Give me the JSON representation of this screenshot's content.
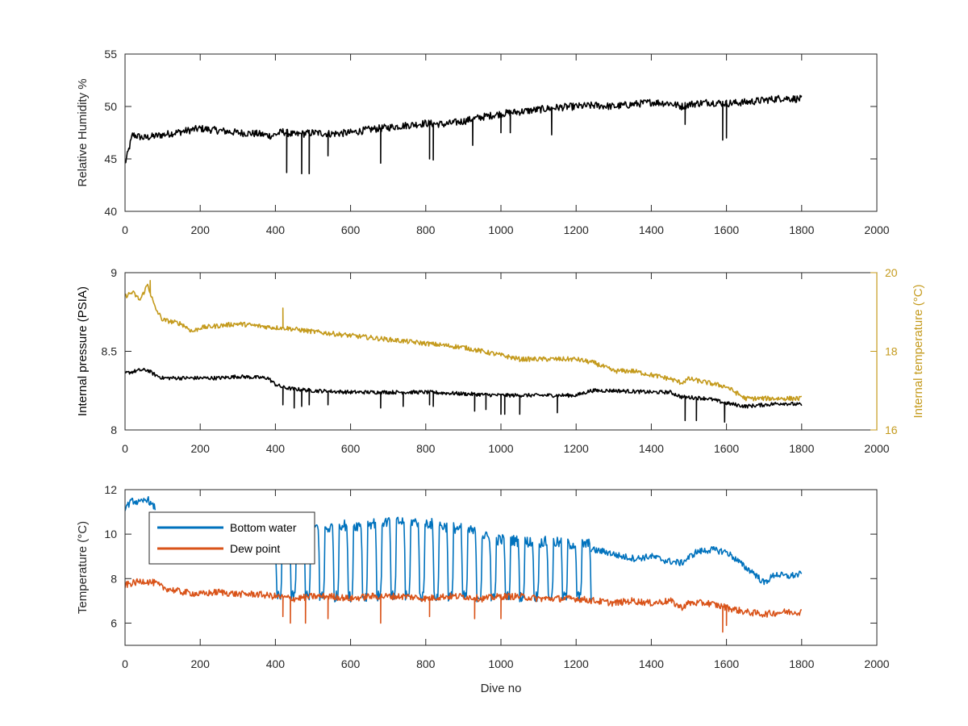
{
  "chart_data": [
    {
      "type": "line",
      "ylabel": "Relative Humidity %",
      "xlim": [
        0,
        2000
      ],
      "ylim": [
        40,
        55
      ],
      "xticks": [
        0,
        200,
        400,
        600,
        800,
        1000,
        1200,
        1400,
        1600,
        1800,
        2000
      ],
      "yticks": [
        40,
        45,
        50,
        55
      ],
      "series": [
        {
          "color": "#000000",
          "x": [
            0,
            20,
            50,
            100,
            150,
            200,
            250,
            300,
            350,
            390,
            420,
            450,
            500,
            550,
            600,
            650,
            700,
            750,
            800,
            850,
            900,
            950,
            1000,
            1050,
            1100,
            1150,
            1200,
            1250,
            1300,
            1350,
            1400,
            1450,
            1480,
            1500,
            1550,
            1600,
            1650,
            1700,
            1750,
            1800
          ],
          "y": [
            44.5,
            47.3,
            47.0,
            47.3,
            47.6,
            47.9,
            47.7,
            47.5,
            47.4,
            47.2,
            47.6,
            47.3,
            47.5,
            47.4,
            47.5,
            47.8,
            48.0,
            48.2,
            48.4,
            48.3,
            48.6,
            49.0,
            49.3,
            49.5,
            49.7,
            49.9,
            50.0,
            50.1,
            50.0,
            50.2,
            50.4,
            50.3,
            50.0,
            50.2,
            50.4,
            50.3,
            50.4,
            50.6,
            50.8,
            50.7
          ],
          "dips": [
            [
              430,
              43.7
            ],
            [
              470,
              43.6
            ],
            [
              490,
              43.6
            ],
            [
              540,
              45.3
            ],
            [
              680,
              44.6
            ],
            [
              810,
              45.0
            ],
            [
              820,
              44.9
            ],
            [
              925,
              46.3
            ],
            [
              1000,
              47.5
            ],
            [
              1025,
              47.5
            ],
            [
              1135,
              47.3
            ],
            [
              1490,
              48.3
            ],
            [
              1590,
              46.8
            ],
            [
              1600,
              47.0
            ]
          ]
        }
      ]
    },
    {
      "type": "line",
      "ylabel": "Internal pressure (PSIA)",
      "y2label": "Internal temperature (°C)",
      "xlim": [
        0,
        2000
      ],
      "ylim": [
        8,
        9
      ],
      "y2lim": [
        16,
        20
      ],
      "xticks": [
        0,
        200,
        400,
        600,
        800,
        1000,
        1200,
        1400,
        1600,
        1800,
        2000
      ],
      "yticks": [
        8,
        8.5,
        9
      ],
      "y2ticks": [
        16,
        18,
        20
      ],
      "series": [
        {
          "axis": "left",
          "color": "#000000",
          "x": [
            0,
            20,
            40,
            60,
            80,
            100,
            150,
            200,
            250,
            300,
            380,
            400,
            420,
            450,
            500,
            600,
            700,
            800,
            900,
            1000,
            1100,
            1200,
            1240,
            1300,
            1400,
            1450,
            1480,
            1550,
            1600,
            1650,
            1700,
            1750,
            1800
          ],
          "y": [
            8.36,
            8.37,
            8.38,
            8.38,
            8.35,
            8.33,
            8.33,
            8.33,
            8.33,
            8.34,
            8.33,
            8.29,
            8.27,
            8.26,
            8.25,
            8.24,
            8.24,
            8.24,
            8.23,
            8.22,
            8.22,
            8.22,
            8.25,
            8.25,
            8.24,
            8.24,
            8.21,
            8.2,
            8.17,
            8.15,
            8.16,
            8.17,
            8.16
          ],
          "dips": [
            [
              420,
              8.16
            ],
            [
              450,
              8.14
            ],
            [
              470,
              8.15
            ],
            [
              490,
              8.16
            ],
            [
              540,
              8.16
            ],
            [
              680,
              8.14
            ],
            [
              740,
              8.15
            ],
            [
              810,
              8.16
            ],
            [
              820,
              8.15
            ],
            [
              930,
              8.12
            ],
            [
              960,
              8.13
            ],
            [
              1000,
              8.1
            ],
            [
              1010,
              8.1
            ],
            [
              1050,
              8.1
            ],
            [
              1150,
              8.11
            ],
            [
              1490,
              8.06
            ],
            [
              1520,
              8.06
            ],
            [
              1595,
              8.05
            ]
          ]
        },
        {
          "axis": "right",
          "color": "#c49a1c",
          "x": [
            0,
            20,
            40,
            60,
            70,
            80,
            100,
            150,
            180,
            200,
            300,
            400,
            420,
            500,
            600,
            700,
            800,
            900,
            1000,
            1050,
            1100,
            1200,
            1250,
            1300,
            1350,
            1400,
            1450,
            1480,
            1500,
            1550,
            1600,
            1650,
            1700,
            1750,
            1800
          ],
          "y": [
            19.4,
            19.5,
            19.3,
            19.7,
            19.4,
            19.1,
            18.8,
            18.7,
            18.5,
            18.6,
            18.7,
            18.6,
            18.6,
            18.5,
            18.4,
            18.3,
            18.2,
            18.1,
            17.9,
            17.8,
            17.8,
            17.8,
            17.7,
            17.5,
            17.5,
            17.4,
            17.3,
            17.2,
            17.3,
            17.2,
            17.1,
            16.8,
            16.8,
            16.8,
            16.8
          ],
          "spikes": [
            [
              67,
              19.8
            ],
            [
              420,
              19.1
            ]
          ]
        }
      ]
    },
    {
      "type": "line",
      "xlabel": "Dive no",
      "ylabel": "Temperature (°C)",
      "xlim": [
        0,
        2000
      ],
      "ylim": [
        5,
        12
      ],
      "xticks": [
        0,
        200,
        400,
        600,
        800,
        1000,
        1200,
        1400,
        1600,
        1800,
        2000
      ],
      "yticks": [
        6,
        8,
        10,
        12
      ],
      "legend": "top-left",
      "series": [
        {
          "name": "Bottom water",
          "color": "#0072bd",
          "x": [
            0,
            20,
            40,
            60,
            70,
            80
          ],
          "y": [
            11.2,
            11.5,
            11.4,
            11.6,
            11.3,
            11.2
          ],
          "oscillation": {
            "x_start": 380,
            "x_end": 1240,
            "low": 7.2,
            "highs": [
              [
                400,
                9.5
              ],
              [
                430,
                10.2
              ],
              [
                470,
                10.4
              ],
              [
                500,
                10.6
              ],
              [
                540,
                10.5
              ],
              [
                570,
                10.7
              ],
              [
                600,
                10.6
              ],
              [
                640,
                10.7
              ],
              [
                680,
                10.8
              ],
              [
                710,
                10.8
              ],
              [
                750,
                10.8
              ],
              [
                790,
                10.8
              ],
              [
                820,
                10.7
              ],
              [
                850,
                10.6
              ],
              [
                890,
                10.5
              ],
              [
                920,
                10.4
              ],
              [
                950,
                10.2
              ],
              [
                980,
                10.0
              ],
              [
                1020,
                10.0
              ],
              [
                1060,
                9.9
              ],
              [
                1100,
                9.9
              ],
              [
                1140,
                9.9
              ],
              [
                1170,
                9.8
              ],
              [
                1210,
                9.8
              ],
              [
                1240,
                9.8
              ]
            ]
          },
          "tail": {
            "x": [
              1240,
              1280,
              1320,
              1360,
              1400,
              1440,
              1480,
              1520,
              1560,
              1600,
              1630,
              1650,
              1670,
              1700,
              1730,
              1760,
              1800
            ],
            "y": [
              9.3,
              9.2,
              9.0,
              8.9,
              9.0,
              8.8,
              8.7,
              9.2,
              9.3,
              9.2,
              8.8,
              8.5,
              8.3,
              7.8,
              8.2,
              8.1,
              8.2
            ]
          }
        },
        {
          "name": "Dew point",
          "color": "#d95319",
          "x": [
            0,
            20,
            50,
            80,
            100,
            150,
            200,
            250,
            300,
            350,
            400,
            450,
            500,
            550,
            600,
            650,
            700,
            750,
            800,
            850,
            900,
            950,
            1000,
            1050,
            1100,
            1150,
            1200,
            1250,
            1300,
            1350,
            1400,
            1450,
            1480,
            1500,
            1550,
            1600,
            1650,
            1700,
            1750,
            1800
          ],
          "y": [
            7.7,
            7.8,
            7.9,
            7.8,
            7.6,
            7.4,
            7.3,
            7.4,
            7.3,
            7.3,
            7.2,
            7.1,
            7.2,
            7.2,
            7.1,
            7.2,
            7.2,
            7.2,
            7.1,
            7.2,
            7.2,
            7.1,
            7.2,
            7.2,
            7.1,
            7.1,
            7.1,
            7.0,
            6.9,
            7.0,
            6.9,
            7.0,
            6.7,
            6.9,
            6.9,
            6.7,
            6.5,
            6.4,
            6.5,
            6.5
          ],
          "dips": [
            [
              420,
              6.3
            ],
            [
              440,
              6.0
            ],
            [
              480,
              6.0
            ],
            [
              540,
              6.2
            ],
            [
              680,
              6.0
            ],
            [
              810,
              6.3
            ],
            [
              930,
              6.2
            ],
            [
              1000,
              6.2
            ],
            [
              1590,
              5.6
            ],
            [
              1600,
              5.9
            ]
          ]
        }
      ]
    }
  ]
}
